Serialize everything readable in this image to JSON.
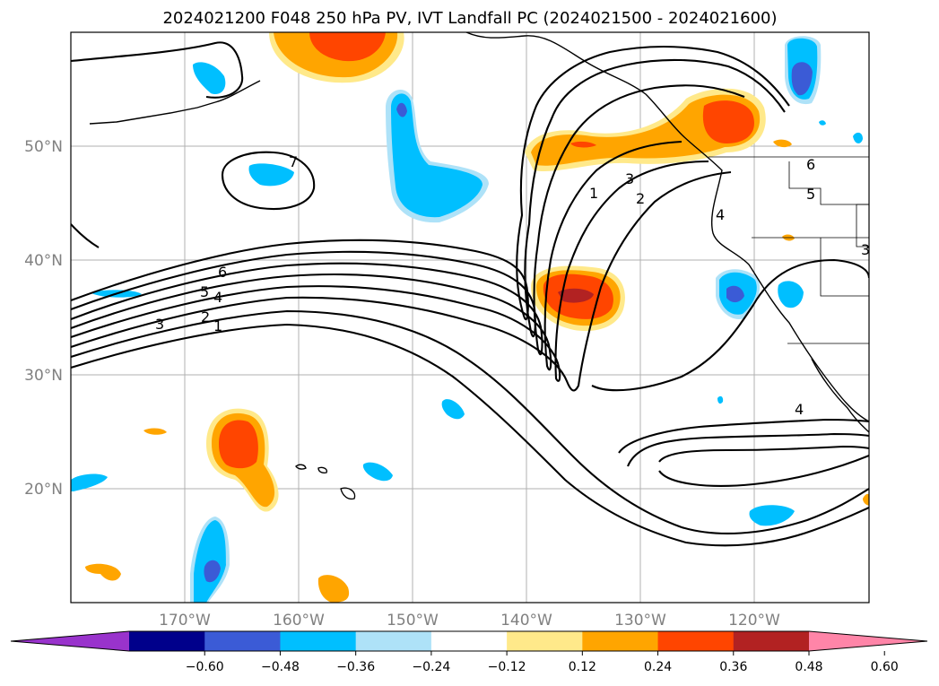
{
  "title": "2024021200 F048 250 hPa PV, IVT Landfall PC (2024021500 - 2024021600)",
  "map": {
    "lat_labels": [
      "50°N",
      "40°N",
      "30°N",
      "20°N"
    ],
    "lon_labels": [
      "170°W",
      "160°W",
      "150°W",
      "140°W",
      "130°W",
      "120°W"
    ],
    "gridlines": true,
    "contour_labels": [
      "7",
      "6",
      "5",
      "4",
      "3",
      "2",
      "1",
      "1",
      "2",
      "3",
      "4",
      "6",
      "5",
      "4",
      "3"
    ],
    "grid_color": "#b0b0b0",
    "contour_color": "#000000"
  },
  "colorbar": {
    "ticks": [
      "−0.60",
      "−0.48",
      "−0.36",
      "−0.24",
      "−0.12",
      "0.12",
      "0.24",
      "0.36",
      "0.48",
      "0.60"
    ],
    "colors": [
      "#9933cc",
      "#00008b",
      "#3b5bd6",
      "#00bfff",
      "#aee2f8",
      "#ffffff",
      "#ffe98a",
      "#ffa500",
      "#ff4500",
      "#b22222",
      "#ff85a8"
    ],
    "extend": "both"
  }
}
